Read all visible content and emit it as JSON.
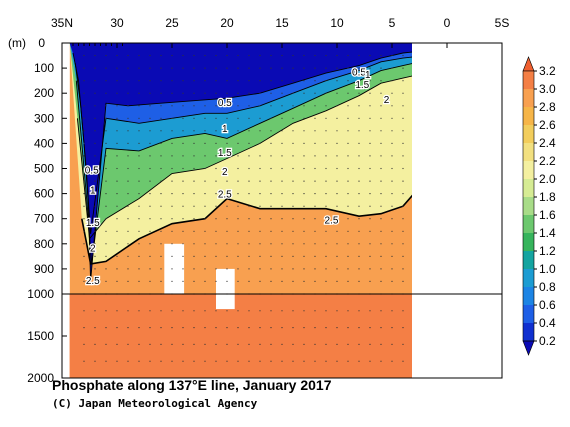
{
  "chart_data": {
    "type": "heatmap",
    "title": "Phosphate along 137°E line, January 2017",
    "credit": "(C) Japan Meteorological Agency",
    "ylabel": "(m)",
    "x_ticks": [
      "35N",
      "30",
      "25",
      "20",
      "15",
      "10",
      "5",
      "0",
      "5S"
    ],
    "y_ticks_upper": [
      "0",
      "100",
      "200",
      "300",
      "400",
      "500",
      "600",
      "700",
      "800",
      "900",
      "1000"
    ],
    "y_ticks_lower": [
      "1500",
      "2000"
    ],
    "x_range": [
      35,
      -5
    ],
    "y_range_upper": [
      0,
      1000
    ],
    "y_range_lower": [
      1000,
      2000
    ],
    "data_x_range": [
      34.3,
      3
    ],
    "colorbar_levels": [
      "3.2",
      "3.0",
      "2.8",
      "2.6",
      "2.4",
      "2.2",
      "2.0",
      "1.8",
      "1.6",
      "1.4",
      "1.2",
      "1.0",
      "0.8",
      "0.6",
      "0.4",
      "0.2"
    ],
    "colors": [
      "#f06030",
      "#f47f45",
      "#f8a050",
      "#f6b548",
      "#f2cd5c",
      "#f2e080",
      "#f4f0a0",
      "#d6ec94",
      "#a8dc88",
      "#6cc86e",
      "#36b45c",
      "#14a4a0",
      "#1c9cd2",
      "#1c84e4",
      "#1e5fe6",
      "#1030d0",
      "#0a0ab4"
    ],
    "contours": [
      {
        "level": "0.5",
        "points": [
          [
            34.0,
            40
          ],
          [
            33.5,
            150
          ],
          [
            33.0,
            400
          ],
          [
            32.6,
            650
          ],
          [
            32.4,
            950
          ],
          [
            31,
            240
          ],
          [
            29,
            250
          ],
          [
            26,
            240
          ],
          [
            23,
            230
          ],
          [
            20,
            220
          ],
          [
            17,
            200
          ],
          [
            14,
            160
          ],
          [
            11,
            120
          ],
          [
            8,
            90
          ],
          [
            6,
            60
          ],
          [
            4,
            40
          ],
          [
            3,
            35
          ]
        ]
      },
      {
        "level": "1",
        "points": [
          [
            33.8,
            80
          ],
          [
            33.3,
            250
          ],
          [
            32.8,
            500
          ],
          [
            32.4,
            760
          ],
          [
            31,
            300
          ],
          [
            28,
            320
          ],
          [
            25,
            300
          ],
          [
            22,
            280
          ],
          [
            20,
            280
          ],
          [
            17,
            250
          ],
          [
            14,
            200
          ],
          [
            11,
            150
          ],
          [
            8,
            110
          ],
          [
            6,
            75
          ],
          [
            4,
            60
          ],
          [
            3,
            55
          ]
        ]
      },
      {
        "level": "1.5",
        "points": [
          [
            33.7,
            150
          ],
          [
            33.2,
            400
          ],
          [
            32.7,
            650
          ],
          [
            32.3,
            880
          ],
          [
            31,
            420
          ],
          [
            28,
            430
          ],
          [
            25,
            380
          ],
          [
            22,
            360
          ],
          [
            20,
            380
          ],
          [
            17,
            320
          ],
          [
            14,
            260
          ],
          [
            11,
            200
          ],
          [
            8,
            150
          ],
          [
            6,
            110
          ],
          [
            4,
            90
          ],
          [
            3,
            80
          ]
        ]
      },
      {
        "level": "2",
        "points": [
          [
            33.6,
            300
          ],
          [
            33.0,
            560
          ],
          [
            32.5,
            780
          ],
          [
            31,
            700
          ],
          [
            28,
            620
          ],
          [
            25,
            520
          ],
          [
            22,
            500
          ],
          [
            20,
            460
          ],
          [
            17,
            400
          ],
          [
            14,
            320
          ],
          [
            11,
            270
          ],
          [
            8,
            210
          ],
          [
            6,
            160
          ],
          [
            4,
            140
          ],
          [
            3,
            130
          ]
        ]
      },
      {
        "level": "2.5",
        "points": [
          [
            33.2,
            700
          ],
          [
            32.4,
            880
          ],
          [
            31,
            870
          ],
          [
            28,
            780
          ],
          [
            25,
            720
          ],
          [
            22,
            700
          ],
          [
            20,
            620
          ],
          [
            17,
            660
          ],
          [
            14,
            660
          ],
          [
            11,
            660
          ],
          [
            8,
            690
          ],
          [
            6,
            680
          ],
          [
            4,
            650
          ],
          [
            3,
            600
          ]
        ]
      }
    ],
    "contour_labels": [
      {
        "text": "0.5",
        "lat": 32.3,
        "depth": 520
      },
      {
        "text": "1",
        "lat": 32.2,
        "depth": 600
      },
      {
        "text": "1.5",
        "lat": 32.2,
        "depth": 730
      },
      {
        "text": "2",
        "lat": 32.2,
        "depth": 830
      },
      {
        "text": "2.5",
        "lat": 32.2,
        "depth": 960
      },
      {
        "text": "0.5",
        "lat": 20.2,
        "depth": 250
      },
      {
        "text": "1",
        "lat": 20.2,
        "depth": 355
      },
      {
        "text": "1.5",
        "lat": 20.2,
        "depth": 450
      },
      {
        "text": "2",
        "lat": 20.2,
        "depth": 525
      },
      {
        "text": "2.5",
        "lat": 20.2,
        "depth": 615
      },
      {
        "text": "2.5",
        "lat": 10.5,
        "depth": 720
      },
      {
        "text": "0.5",
        "lat": 8.0,
        "depth": 130
      },
      {
        "text": "1",
        "lat": 7.2,
        "depth": 140
      },
      {
        "text": "1.5",
        "lat": 7.7,
        "depth": 180
      },
      {
        "text": "2",
        "lat": 5.5,
        "depth": 240
      }
    ],
    "gaps": [
      {
        "lat_from": 25.7,
        "lat_to": 23.9,
        "depth_from": 800,
        "depth_to": 1000
      },
      {
        "lat_from": 21.0,
        "lat_to": 19.3,
        "depth_from": 900,
        "depth_to": 1180
      }
    ],
    "colorbar_range": [
      0.2,
      3.2
    ],
    "grid": false
  }
}
